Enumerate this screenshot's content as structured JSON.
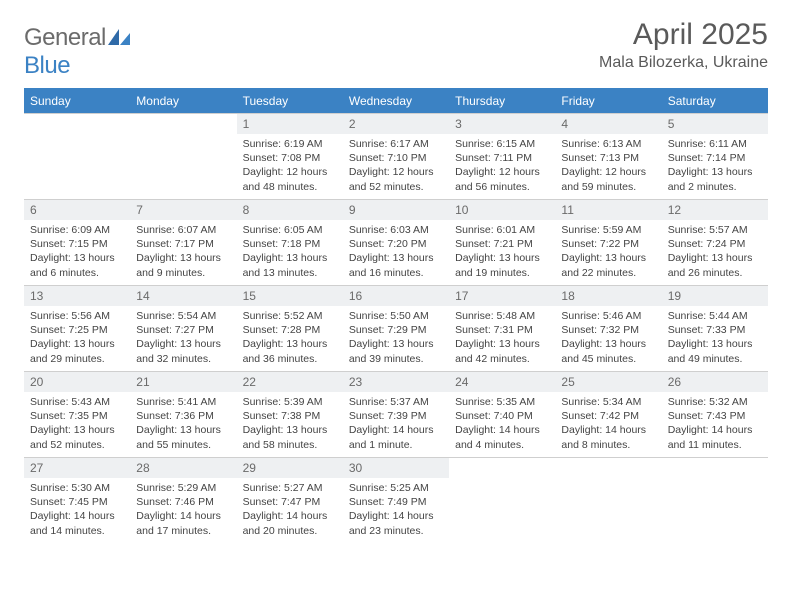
{
  "logo": {
    "text1": "General",
    "text2": "Blue"
  },
  "title": "April 2025",
  "location": "Mala Bilozerka, Ukraine",
  "colors": {
    "header_bg": "#3b82c4",
    "header_text": "#ffffff",
    "daynum_bg": "#eef0f2",
    "daynum_text": "#6a6a6a",
    "body_text": "#444444",
    "border": "#cfcfcf"
  },
  "weekdays": [
    "Sunday",
    "Monday",
    "Tuesday",
    "Wednesday",
    "Thursday",
    "Friday",
    "Saturday"
  ],
  "weeks": [
    [
      null,
      null,
      {
        "n": "1",
        "sr": "Sunrise: 6:19 AM",
        "ss": "Sunset: 7:08 PM",
        "dl": "Daylight: 12 hours and 48 minutes."
      },
      {
        "n": "2",
        "sr": "Sunrise: 6:17 AM",
        "ss": "Sunset: 7:10 PM",
        "dl": "Daylight: 12 hours and 52 minutes."
      },
      {
        "n": "3",
        "sr": "Sunrise: 6:15 AM",
        "ss": "Sunset: 7:11 PM",
        "dl": "Daylight: 12 hours and 56 minutes."
      },
      {
        "n": "4",
        "sr": "Sunrise: 6:13 AM",
        "ss": "Sunset: 7:13 PM",
        "dl": "Daylight: 12 hours and 59 minutes."
      },
      {
        "n": "5",
        "sr": "Sunrise: 6:11 AM",
        "ss": "Sunset: 7:14 PM",
        "dl": "Daylight: 13 hours and 2 minutes."
      }
    ],
    [
      {
        "n": "6",
        "sr": "Sunrise: 6:09 AM",
        "ss": "Sunset: 7:15 PM",
        "dl": "Daylight: 13 hours and 6 minutes."
      },
      {
        "n": "7",
        "sr": "Sunrise: 6:07 AM",
        "ss": "Sunset: 7:17 PM",
        "dl": "Daylight: 13 hours and 9 minutes."
      },
      {
        "n": "8",
        "sr": "Sunrise: 6:05 AM",
        "ss": "Sunset: 7:18 PM",
        "dl": "Daylight: 13 hours and 13 minutes."
      },
      {
        "n": "9",
        "sr": "Sunrise: 6:03 AM",
        "ss": "Sunset: 7:20 PM",
        "dl": "Daylight: 13 hours and 16 minutes."
      },
      {
        "n": "10",
        "sr": "Sunrise: 6:01 AM",
        "ss": "Sunset: 7:21 PM",
        "dl": "Daylight: 13 hours and 19 minutes."
      },
      {
        "n": "11",
        "sr": "Sunrise: 5:59 AM",
        "ss": "Sunset: 7:22 PM",
        "dl": "Daylight: 13 hours and 22 minutes."
      },
      {
        "n": "12",
        "sr": "Sunrise: 5:57 AM",
        "ss": "Sunset: 7:24 PM",
        "dl": "Daylight: 13 hours and 26 minutes."
      }
    ],
    [
      {
        "n": "13",
        "sr": "Sunrise: 5:56 AM",
        "ss": "Sunset: 7:25 PM",
        "dl": "Daylight: 13 hours and 29 minutes."
      },
      {
        "n": "14",
        "sr": "Sunrise: 5:54 AM",
        "ss": "Sunset: 7:27 PM",
        "dl": "Daylight: 13 hours and 32 minutes."
      },
      {
        "n": "15",
        "sr": "Sunrise: 5:52 AM",
        "ss": "Sunset: 7:28 PM",
        "dl": "Daylight: 13 hours and 36 minutes."
      },
      {
        "n": "16",
        "sr": "Sunrise: 5:50 AM",
        "ss": "Sunset: 7:29 PM",
        "dl": "Daylight: 13 hours and 39 minutes."
      },
      {
        "n": "17",
        "sr": "Sunrise: 5:48 AM",
        "ss": "Sunset: 7:31 PM",
        "dl": "Daylight: 13 hours and 42 minutes."
      },
      {
        "n": "18",
        "sr": "Sunrise: 5:46 AM",
        "ss": "Sunset: 7:32 PM",
        "dl": "Daylight: 13 hours and 45 minutes."
      },
      {
        "n": "19",
        "sr": "Sunrise: 5:44 AM",
        "ss": "Sunset: 7:33 PM",
        "dl": "Daylight: 13 hours and 49 minutes."
      }
    ],
    [
      {
        "n": "20",
        "sr": "Sunrise: 5:43 AM",
        "ss": "Sunset: 7:35 PM",
        "dl": "Daylight: 13 hours and 52 minutes."
      },
      {
        "n": "21",
        "sr": "Sunrise: 5:41 AM",
        "ss": "Sunset: 7:36 PM",
        "dl": "Daylight: 13 hours and 55 minutes."
      },
      {
        "n": "22",
        "sr": "Sunrise: 5:39 AM",
        "ss": "Sunset: 7:38 PM",
        "dl": "Daylight: 13 hours and 58 minutes."
      },
      {
        "n": "23",
        "sr": "Sunrise: 5:37 AM",
        "ss": "Sunset: 7:39 PM",
        "dl": "Daylight: 14 hours and 1 minute."
      },
      {
        "n": "24",
        "sr": "Sunrise: 5:35 AM",
        "ss": "Sunset: 7:40 PM",
        "dl": "Daylight: 14 hours and 4 minutes."
      },
      {
        "n": "25",
        "sr": "Sunrise: 5:34 AM",
        "ss": "Sunset: 7:42 PM",
        "dl": "Daylight: 14 hours and 8 minutes."
      },
      {
        "n": "26",
        "sr": "Sunrise: 5:32 AM",
        "ss": "Sunset: 7:43 PM",
        "dl": "Daylight: 14 hours and 11 minutes."
      }
    ],
    [
      {
        "n": "27",
        "sr": "Sunrise: 5:30 AM",
        "ss": "Sunset: 7:45 PM",
        "dl": "Daylight: 14 hours and 14 minutes."
      },
      {
        "n": "28",
        "sr": "Sunrise: 5:29 AM",
        "ss": "Sunset: 7:46 PM",
        "dl": "Daylight: 14 hours and 17 minutes."
      },
      {
        "n": "29",
        "sr": "Sunrise: 5:27 AM",
        "ss": "Sunset: 7:47 PM",
        "dl": "Daylight: 14 hours and 20 minutes."
      },
      {
        "n": "30",
        "sr": "Sunrise: 5:25 AM",
        "ss": "Sunset: 7:49 PM",
        "dl": "Daylight: 14 hours and 23 minutes."
      },
      null,
      null,
      null
    ]
  ]
}
